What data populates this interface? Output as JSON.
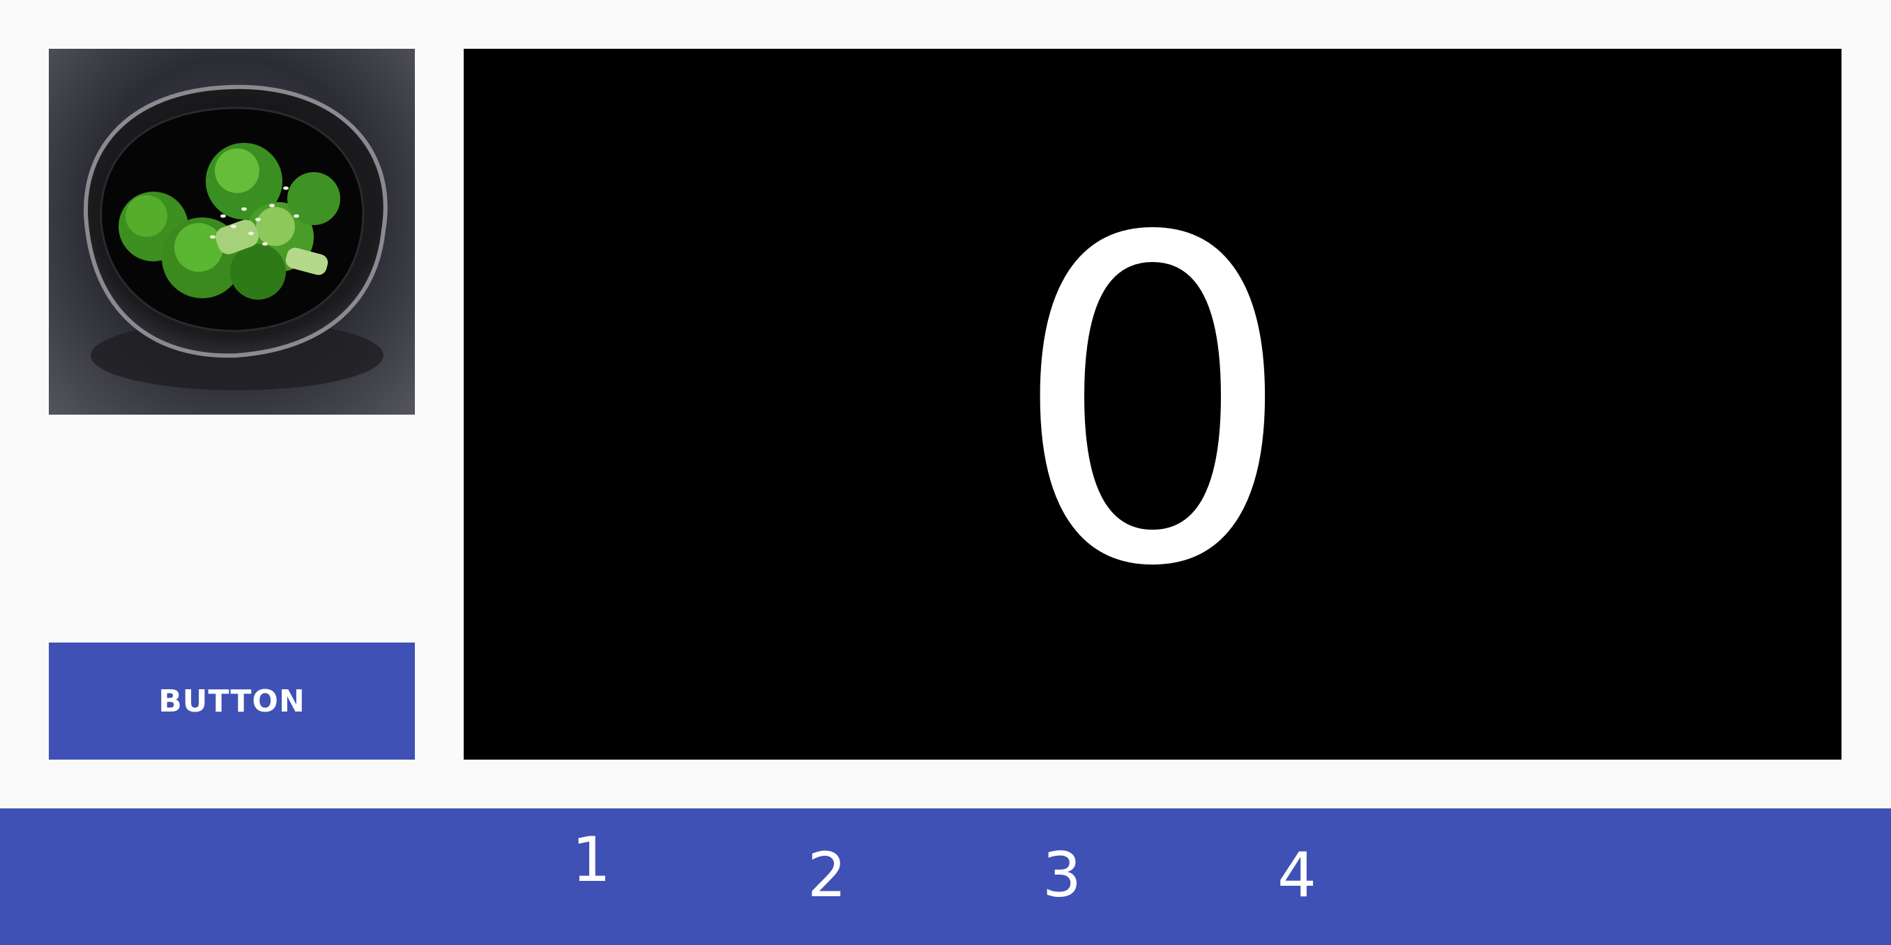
{
  "food_image": {
    "icon": "broccoli-bowl-photo"
  },
  "button": {
    "label": "BUTTON"
  },
  "counter": {
    "value": "0"
  },
  "bottom_nav": {
    "items": [
      {
        "label": "1"
      },
      {
        "label": "2"
      },
      {
        "label": "3"
      },
      {
        "label": "4"
      }
    ]
  },
  "colors": {
    "primary": "#3f51b5",
    "background": "#fafafa",
    "display_bg": "#000000",
    "text_on_primary": "#ffffff"
  }
}
